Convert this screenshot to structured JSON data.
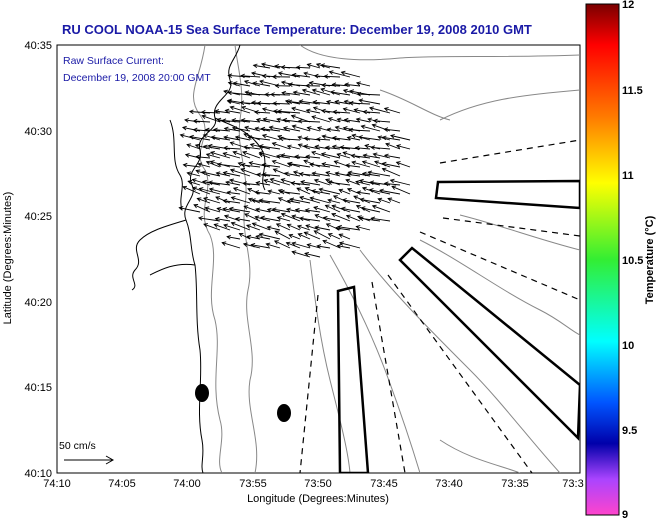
{
  "title": "RU COOL  NOAA-15  Sea Surface Temperature:  December 19, 2008 2010 GMT",
  "overlay": {
    "line1": "Raw Surface Current:",
    "line2": "December 19, 2008 20:00 GMT"
  },
  "axes": {
    "xlabel": "Longitude (Degrees:Minutes)",
    "ylabel": "Latitude (Degrees:Minutes)",
    "xticks": [
      "74:10",
      "74:05",
      "74:00",
      "73:55",
      "73:50",
      "73:45",
      "73:40",
      "73:35",
      "73:3"
    ],
    "yticks": [
      "40:35",
      "40:30",
      "40:25",
      "40:20",
      "40:15",
      "40:10"
    ]
  },
  "scale_label": "50 cm/s",
  "colorbar": {
    "label": "Temperature (°C)",
    "ticks": [
      "12",
      "11.5",
      "11",
      "10.5",
      "10",
      "9.5",
      "9"
    ],
    "min": 9,
    "max": 12
  }
}
